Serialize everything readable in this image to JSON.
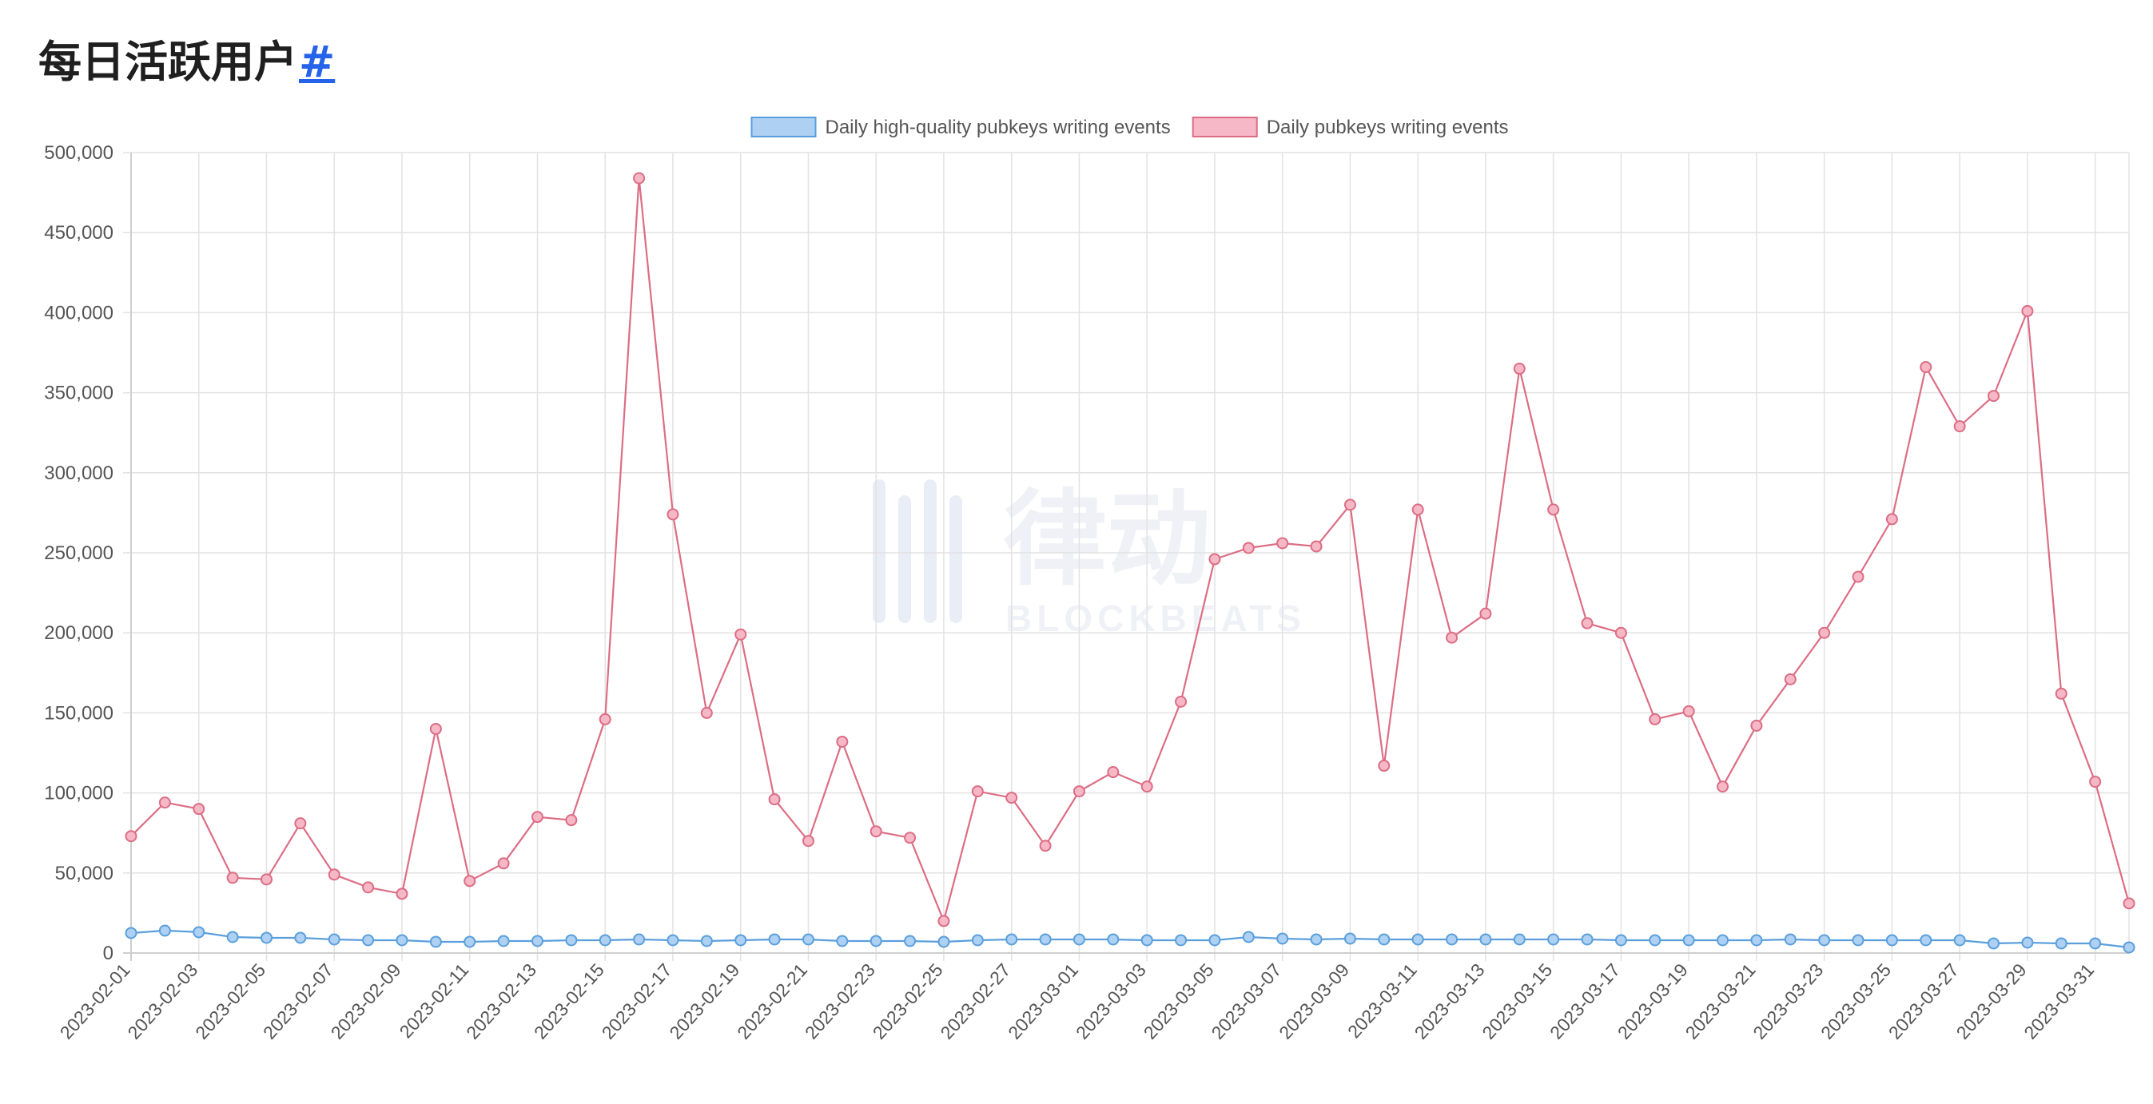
{
  "page": {
    "heading": "每日活跃用户",
    "anchor": "#"
  },
  "colors": {
    "series_hq_line": "#5a9fdc",
    "series_hq_fill": "#aed0f3",
    "series_all_line": "#dc6d84",
    "series_all_fill": "#f6b8c6",
    "grid": "#e2e2e2",
    "text": "#555555"
  },
  "watermark": {
    "brand": "律动",
    "sub": "BLOCKBEATS"
  },
  "chart_data": {
    "type": "line",
    "title": "",
    "xlabel": "",
    "ylabel": "",
    "legend_position": "top-center",
    "grid": true,
    "ylim": [
      0,
      500000
    ],
    "y_ticks": [
      "0",
      "50,000",
      "100,000",
      "150,000",
      "200,000",
      "250,000",
      "300,000",
      "350,000",
      "400,000",
      "450,000",
      "500,000"
    ],
    "x": [
      "2023-02-01",
      "2023-02-02",
      "2023-02-03",
      "2023-02-04",
      "2023-02-05",
      "2023-02-06",
      "2023-02-07",
      "2023-02-08",
      "2023-02-09",
      "2023-02-10",
      "2023-02-11",
      "2023-02-12",
      "2023-02-13",
      "2023-02-14",
      "2023-02-15",
      "2023-02-16",
      "2023-02-17",
      "2023-02-18",
      "2023-02-19",
      "2023-02-20",
      "2023-02-21",
      "2023-02-22",
      "2023-02-23",
      "2023-02-24",
      "2023-02-25",
      "2023-02-26",
      "2023-02-27",
      "2023-02-28",
      "2023-03-01",
      "2023-03-02",
      "2023-03-03",
      "2023-03-04",
      "2023-03-05",
      "2023-03-06",
      "2023-03-07",
      "2023-03-08",
      "2023-03-09",
      "2023-03-10",
      "2023-03-11",
      "2023-03-12",
      "2023-03-13",
      "2023-03-14",
      "2023-03-15",
      "2023-03-16",
      "2023-03-17",
      "2023-03-18",
      "2023-03-19",
      "2023-03-20",
      "2023-03-21",
      "2023-03-22",
      "2023-03-23",
      "2023-03-24",
      "2023-03-25",
      "2023-03-26",
      "2023-03-27",
      "2023-03-28",
      "2023-03-29",
      "2023-03-30",
      "2023-03-31",
      "2023-04-01"
    ],
    "x_tick_labels": [
      "2023-02-01",
      "2023-02-03",
      "2023-02-05",
      "2023-02-07",
      "2023-02-09",
      "2023-02-11",
      "2023-02-13",
      "2023-02-15",
      "2023-02-17",
      "2023-02-19",
      "2023-02-21",
      "2023-02-23",
      "2023-02-25",
      "2023-02-27",
      "2023-03-01",
      "2023-03-03",
      "2023-03-05",
      "2023-03-07",
      "2023-03-09",
      "2023-03-11",
      "2023-03-13",
      "2023-03-15",
      "2023-03-17",
      "2023-03-19",
      "2023-03-21",
      "2023-03-23",
      "2023-03-25",
      "2023-03-27",
      "2023-03-29",
      "2023-03-31"
    ],
    "series": [
      {
        "name": "Daily high-quality pubkeys writing events",
        "values": [
          12500,
          14000,
          13000,
          10000,
          9500,
          9500,
          8500,
          8000,
          8000,
          7000,
          7000,
          7500,
          7500,
          8000,
          8000,
          8500,
          8000,
          7500,
          8000,
          8500,
          8500,
          7500,
          7500,
          7500,
          7000,
          8000,
          8500,
          8500,
          8500,
          8500,
          8000,
          8000,
          8000,
          10000,
          9000,
          8500,
          9000,
          8500,
          8500,
          8500,
          8500,
          8500,
          8500,
          8500,
          8000,
          8000,
          8000,
          8000,
          8000,
          8500,
          8000,
          8000,
          8000,
          8000,
          8000,
          6000,
          6500,
          6000,
          6000,
          3500
        ]
      },
      {
        "name": "Daily pubkeys writing events",
        "values": [
          73000,
          94000,
          90000,
          47000,
          46000,
          81000,
          49000,
          41000,
          37000,
          140000,
          45000,
          56000,
          85000,
          83000,
          146000,
          484000,
          274000,
          150000,
          199000,
          96000,
          70000,
          132000,
          76000,
          72000,
          20000,
          101000,
          97000,
          67000,
          101000,
          113000,
          104000,
          157000,
          246000,
          253000,
          256000,
          254000,
          280000,
          117000,
          277000,
          197000,
          212000,
          365000,
          277000,
          206000,
          200000,
          146000,
          151000,
          104000,
          142000,
          171000,
          200000,
          235000,
          271000,
          366000,
          329000,
          348000,
          401000,
          162000,
          107000,
          31000
        ]
      }
    ]
  }
}
